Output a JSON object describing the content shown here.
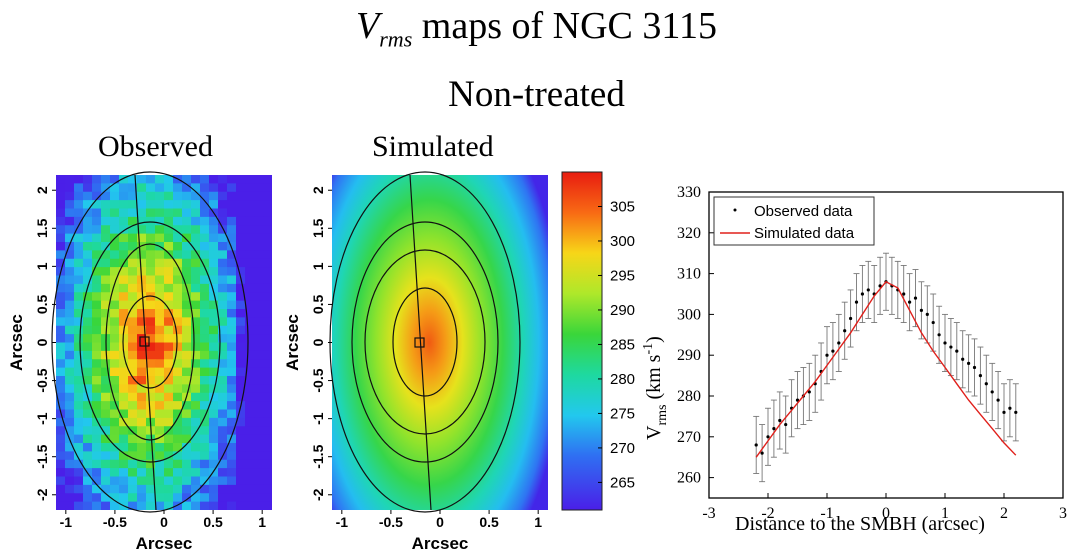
{
  "header": {
    "title_symbol": "V",
    "title_sub": "rms",
    "title_rest": " maps of NGC 3115",
    "subtitle": "Non-treated"
  },
  "panels": {
    "observed_label": "Observed",
    "simulated_label": "Simulated"
  },
  "chart_data": [
    {
      "type": "heatmap",
      "title": "Observed",
      "xlabel": "Arcsec",
      "ylabel": "Arcsec",
      "xlim": [
        -1.1,
        1.1
      ],
      "ylim": [
        -2.2,
        2.2
      ],
      "x_ticks": [
        "-1",
        "-0.5",
        "0",
        "0.5",
        "1"
      ],
      "y_ticks": [
        "2",
        "1.5",
        "1",
        "0.5",
        "0",
        "-0.5",
        "-1",
        "-1.5",
        "-2"
      ],
      "peak_value": 306,
      "peak_position": [
        -0.2,
        0.0
      ],
      "contours": "elliptical isovelocity contours centred on the SMBH",
      "major_axis_line": "nearly vertical slit line through the centre"
    },
    {
      "type": "heatmap",
      "title": "Simulated",
      "xlabel": "Arcsec",
      "ylabel": "Arcsec",
      "xlim": [
        -1.1,
        1.1
      ],
      "ylim": [
        -2.2,
        2.2
      ],
      "x_ticks": [
        "-1",
        "-0.5",
        "0",
        "0.5",
        "1"
      ],
      "y_ticks": [
        "2",
        "1.5",
        "1",
        "0.5",
        "0",
        "-0.5",
        "-1",
        "-1.5",
        "-2"
      ],
      "peak_value": 305,
      "peak_position": [
        -0.2,
        0.0
      ]
    },
    {
      "type": "colorbar",
      "min": 261,
      "max": 310,
      "ticks": [
        "305",
        "300",
        "295",
        "290",
        "285",
        "280",
        "275",
        "270",
        "265"
      ]
    },
    {
      "type": "scatter",
      "xlabel": "Distance to the SMBH (arcsec)",
      "ylabel_main": "V",
      "ylabel_sub": "rms",
      "ylabel_rest": " (km s",
      "ylabel_sup": "-1",
      "ylabel_end": ")",
      "xlim": [
        -3,
        3
      ],
      "ylim": [
        255,
        330
      ],
      "x_ticks": [
        "-3",
        "-2",
        "-1",
        "0",
        "1",
        "2",
        "3"
      ],
      "y_ticks": [
        "260",
        "270",
        "280",
        "290",
        "300",
        "310",
        "320",
        "330"
      ],
      "legend": [
        "Observed data",
        "Simulated data"
      ],
      "legend_position": "top-left",
      "observed": {
        "x": [
          -2.2,
          -2.1,
          -2.0,
          -1.9,
          -1.8,
          -1.7,
          -1.6,
          -1.5,
          -1.4,
          -1.3,
          -1.2,
          -1.1,
          -1.0,
          -0.9,
          -0.8,
          -0.7,
          -0.6,
          -0.5,
          -0.4,
          -0.3,
          -0.2,
          -0.1,
          0.0,
          0.1,
          0.2,
          0.3,
          0.4,
          0.5,
          0.6,
          0.7,
          0.8,
          0.9,
          1.0,
          1.1,
          1.2,
          1.3,
          1.4,
          1.5,
          1.6,
          1.7,
          1.8,
          1.9,
          2.0,
          2.1,
          2.2
        ],
        "y": [
          268,
          266,
          270,
          272,
          274,
          273,
          277,
          279,
          280,
          281,
          283,
          286,
          290,
          291,
          293,
          296,
          299,
          303,
          305,
          306,
          305,
          307,
          308,
          307,
          306,
          305,
          303,
          304,
          301,
          300,
          298,
          295,
          293,
          292,
          291,
          289,
          288,
          287,
          285,
          283,
          281,
          279,
          276,
          277,
          276
        ],
        "error": 7
      },
      "simulated": {
        "x": [
          -2.2,
          -2.0,
          -1.8,
          -1.6,
          -1.4,
          -1.2,
          -1.0,
          -0.8,
          -0.6,
          -0.4,
          -0.2,
          0.0,
          0.2,
          0.4,
          0.6,
          0.8,
          1.0,
          1.2,
          1.4,
          1.6,
          1.8,
          2.0,
          2.2
        ],
        "y": [
          265,
          269,
          273,
          276.5,
          280,
          283.5,
          287.5,
          291.5,
          295.5,
          300,
          304.5,
          308,
          306.5,
          301,
          295.5,
          291,
          287,
          283,
          279,
          275.5,
          272,
          268.5,
          265.5
        ]
      },
      "colors": {
        "observed": "#000000",
        "simulated": "#e0201b"
      }
    }
  ]
}
